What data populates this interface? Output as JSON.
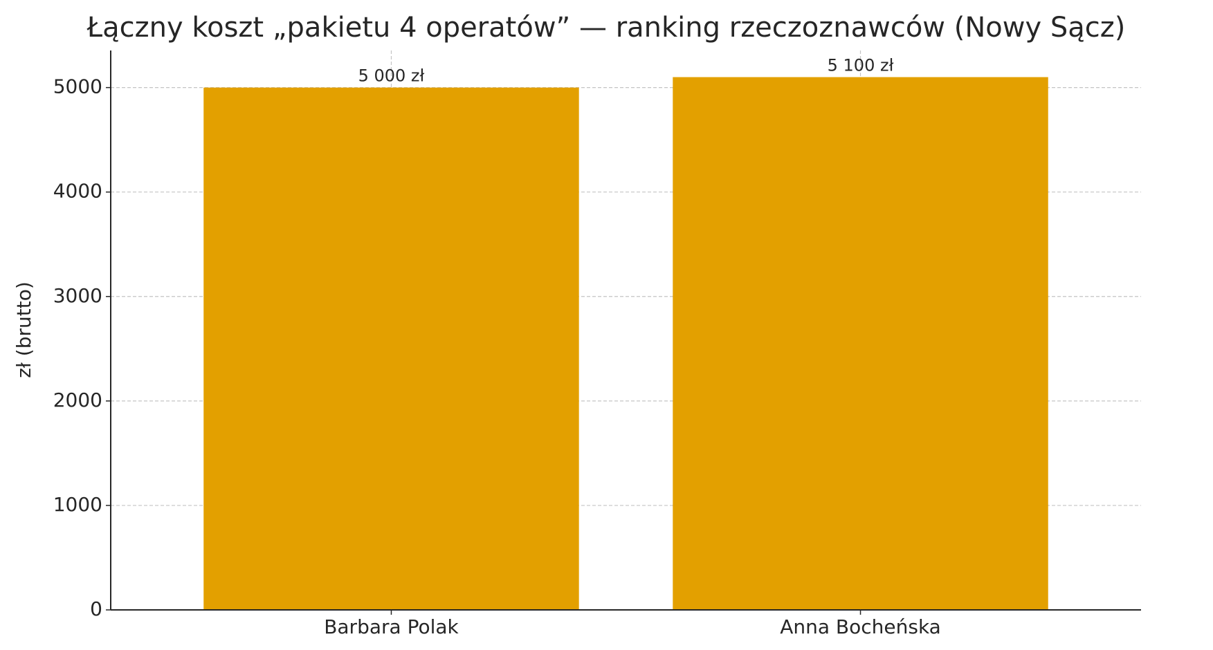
{
  "chart_data": {
    "type": "bar",
    "title": "Łączny koszt „pakietu 4 operatów” — ranking rzeczoznawców (Nowy Sącz)",
    "y_label": "zł (brutto)",
    "categories": [
      "Barbara Polak",
      "Anna Bocheńska"
    ],
    "values": [
      5000,
      5100
    ],
    "value_labels": [
      "5 000 zł",
      "5 100 zł"
    ],
    "color": "#e3a000",
    "ylim": [
      0,
      5355
    ],
    "yticks": [
      0,
      1000,
      2000,
      3000,
      4000,
      5000
    ],
    "grid": true
  }
}
